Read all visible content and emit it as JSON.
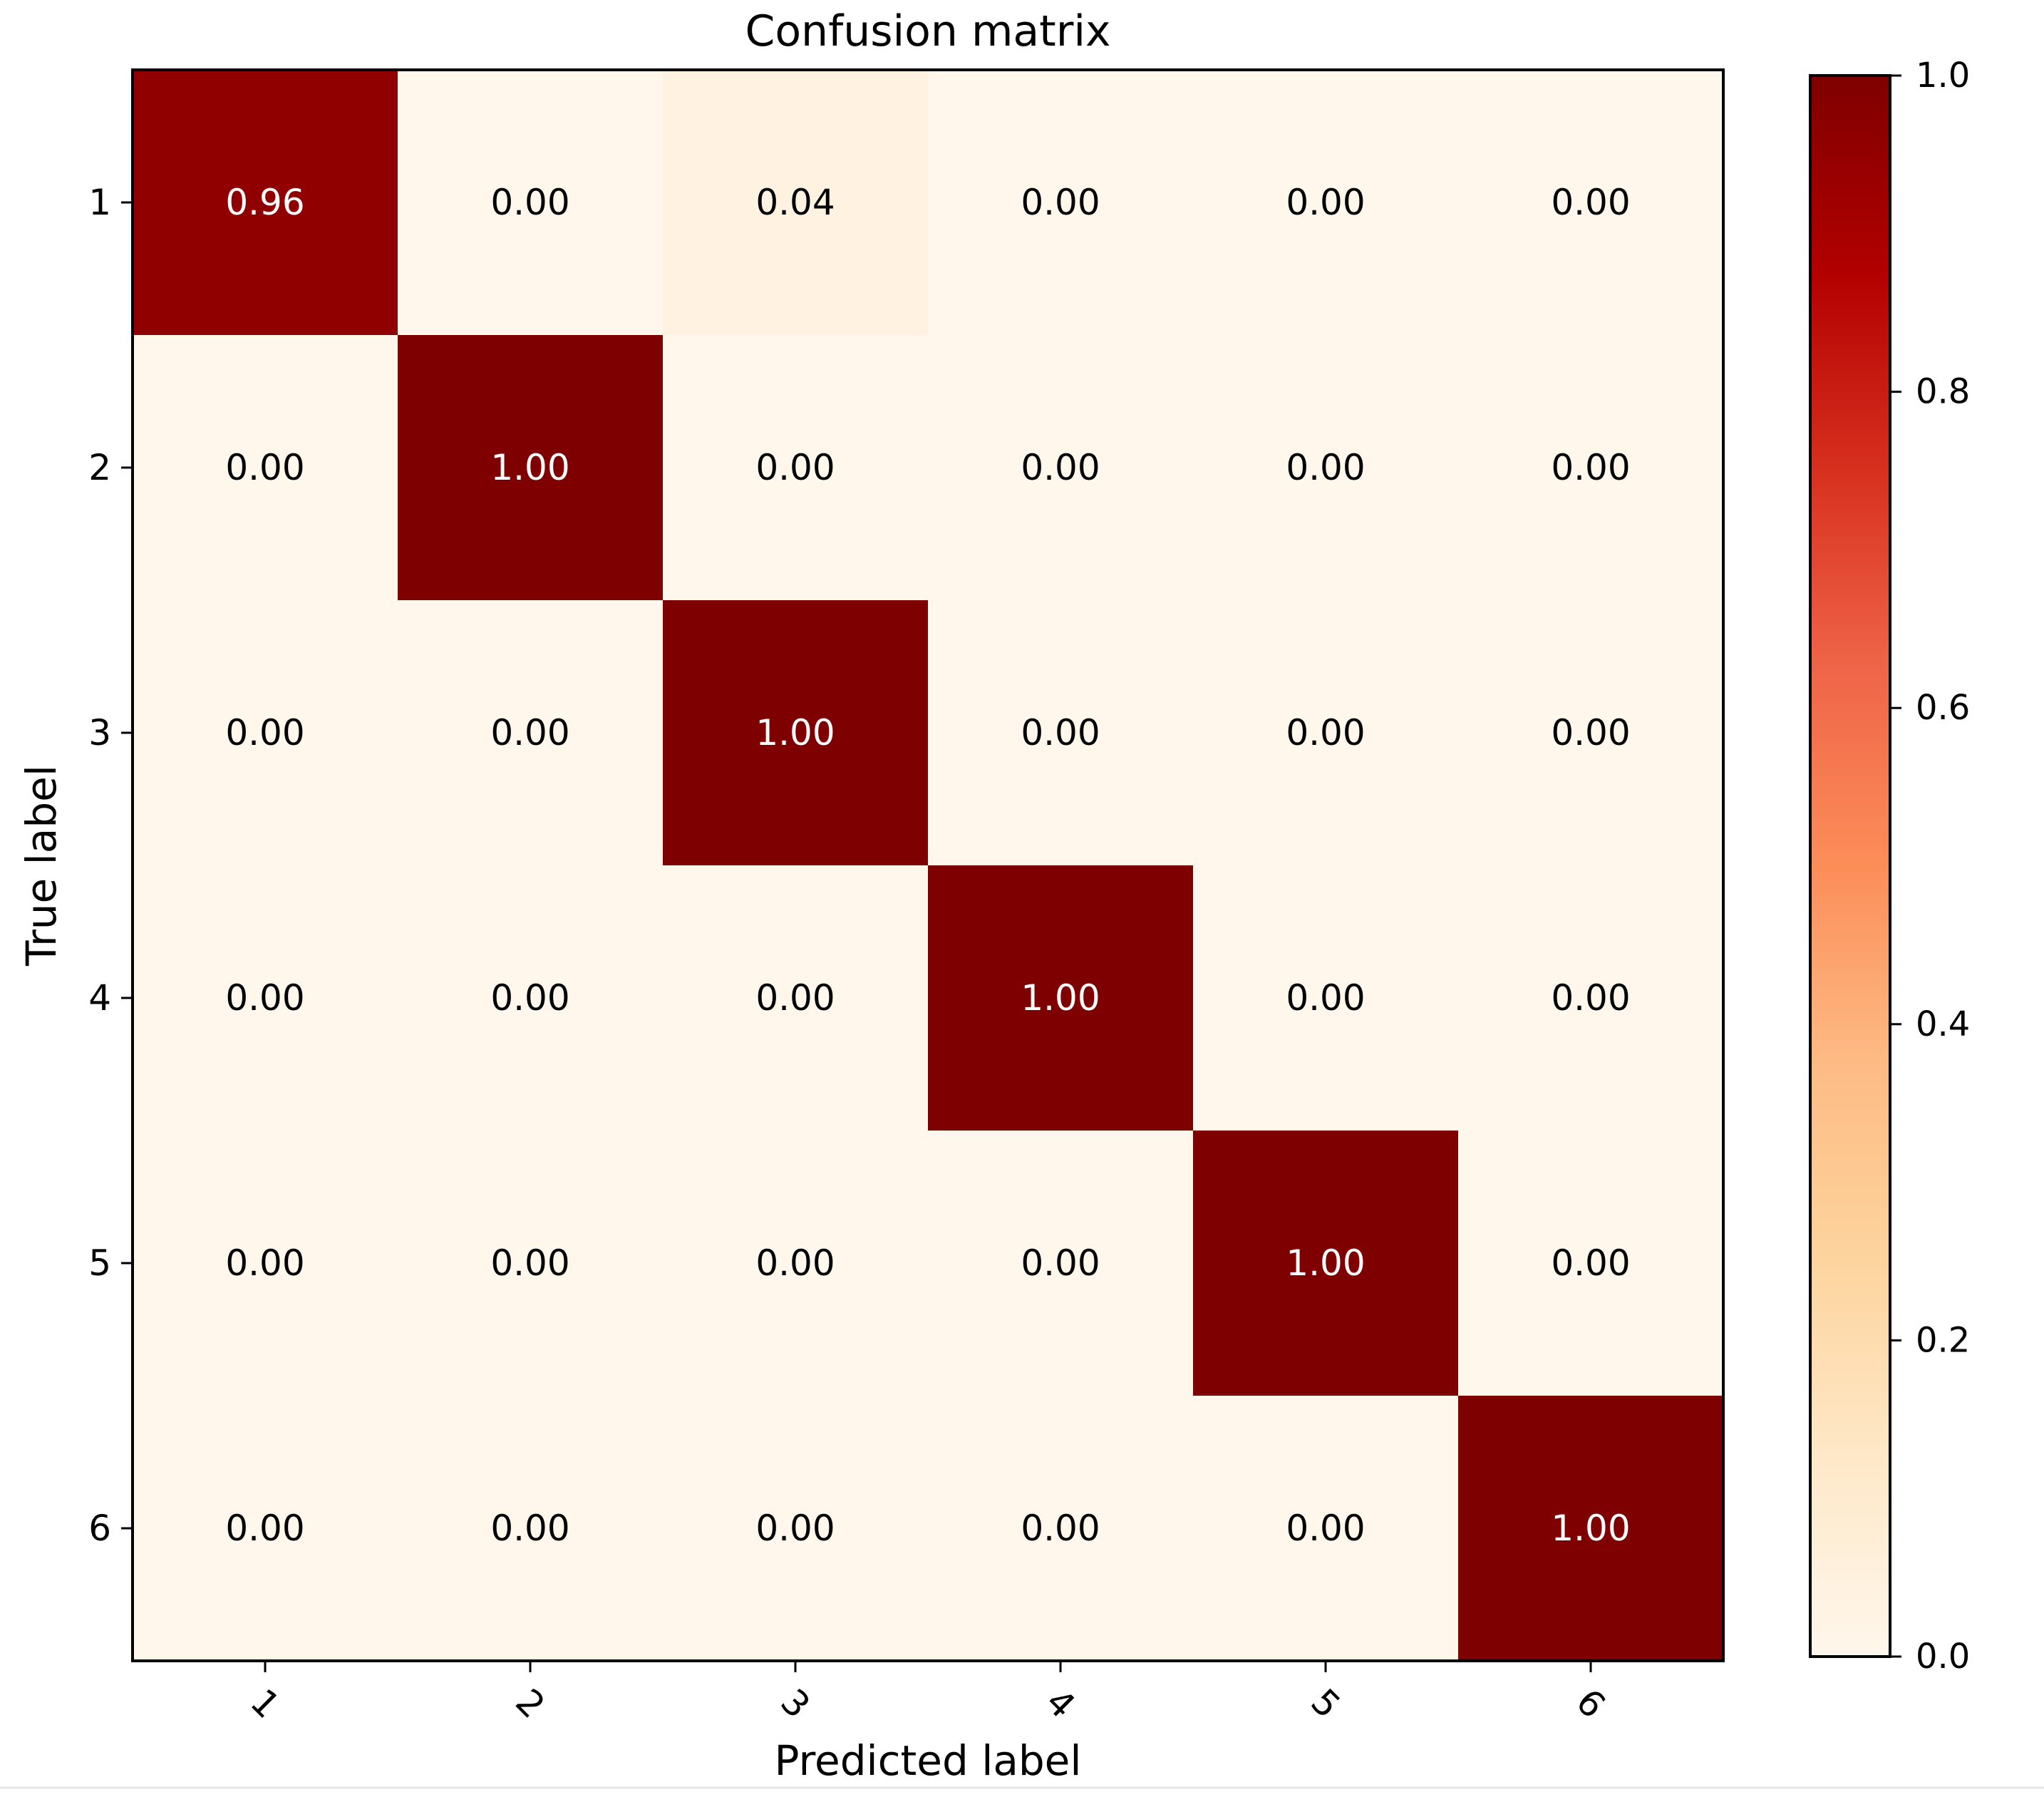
{
  "chart_data": {
    "type": "heatmap",
    "title": "Confusion matrix",
    "xlabel": "Predicted label",
    "ylabel": "True label",
    "x_categories": [
      "1",
      "2",
      "3",
      "4",
      "5",
      "6"
    ],
    "y_categories": [
      "1",
      "2",
      "3",
      "4",
      "5",
      "6"
    ],
    "x_tick_rotation_deg": 45,
    "values": [
      [
        0.96,
        0.0,
        0.04,
        0.0,
        0.0,
        0.0
      ],
      [
        0.0,
        1.0,
        0.0,
        0.0,
        0.0,
        0.0
      ],
      [
        0.0,
        0.0,
        1.0,
        0.0,
        0.0,
        0.0
      ],
      [
        0.0,
        0.0,
        0.0,
        1.0,
        0.0,
        0.0
      ],
      [
        0.0,
        0.0,
        0.0,
        0.0,
        1.0,
        0.0
      ],
      [
        0.0,
        0.0,
        0.0,
        0.0,
        0.0,
        1.0
      ]
    ],
    "value_format": "0.00",
    "colormap": "OrRd",
    "colorbar": {
      "range": [
        0.0,
        1.0
      ],
      "ticks": [
        0.0,
        0.2,
        0.4,
        0.6,
        0.8,
        1.0
      ],
      "tick_labels": [
        "0.0",
        "0.2",
        "0.4",
        "0.6",
        "0.8",
        "1.0"
      ],
      "position": "right"
    },
    "grid": false,
    "colors": {
      "low": "#fff7ec",
      "high": "#7f0000",
      "text_on_dark": "#ffffff",
      "text_on_light": "#000000"
    }
  }
}
